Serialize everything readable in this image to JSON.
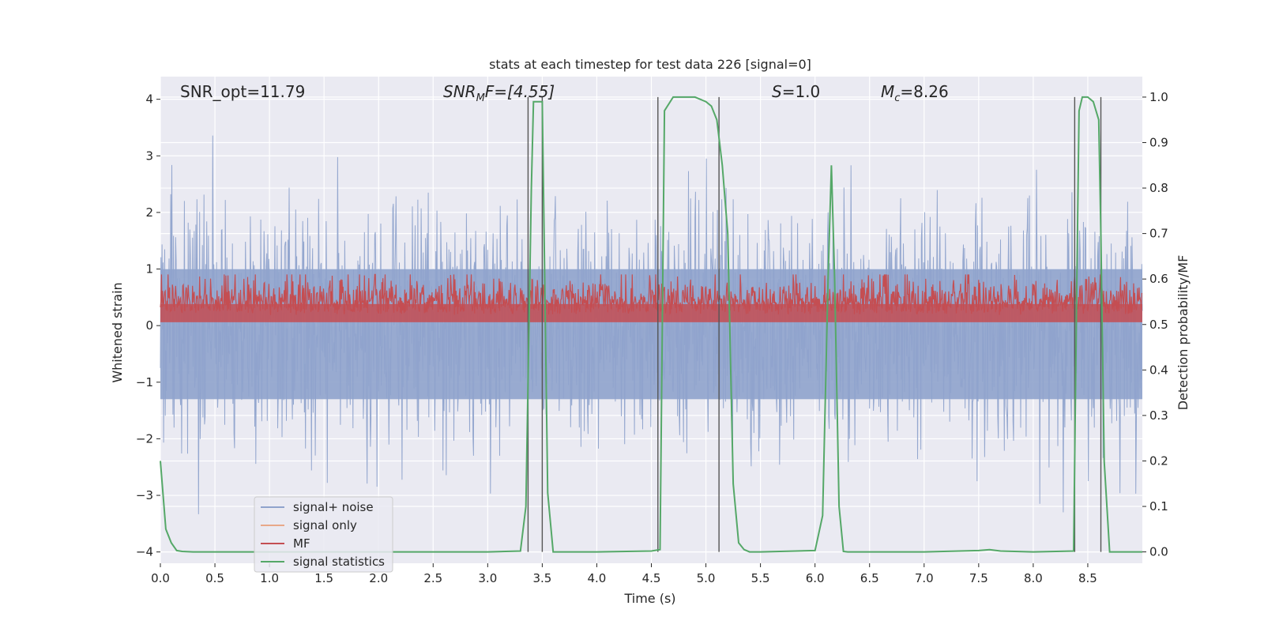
{
  "chart_data": {
    "type": "line",
    "title": "stats at each timestep for test data 226 [signal=0]",
    "xlabel": "Time (s)",
    "ylabel_left": "Whitened strain",
    "ylabel_right": "Detection probability/MF",
    "xlim": [
      0.0,
      9.0
    ],
    "ylim_left": [
      -4.2,
      4.4
    ],
    "ylim_right": [
      -0.025,
      1.045
    ],
    "x_ticks": [
      "0.0",
      "0.5",
      "1.0",
      "1.5",
      "2.0",
      "2.5",
      "3.0",
      "3.5",
      "4.0",
      "4.5",
      "5.0",
      "5.5",
      "6.0",
      "6.5",
      "7.0",
      "7.5",
      "8.0",
      "8.5"
    ],
    "y_ticks_left": [
      "4",
      "3",
      "2",
      "1",
      "0",
      "−1",
      "−2",
      "−3",
      "−4"
    ],
    "y_ticks_right": [
      "1.0",
      "0.9",
      "0.8",
      "0.7",
      "0.6",
      "0.5",
      "0.4",
      "0.3",
      "0.2",
      "0.1",
      "0.0"
    ],
    "annotations": {
      "snr_opt": "SNR_opt=11.79",
      "snr_mf_base": "SNR",
      "snr_mf_sub": "M",
      "snr_mf_rest": "F=[4.55]",
      "s": "S",
      "s_rest": "=1.0",
      "mc": "M",
      "mc_sub": "c",
      "mc_rest": "=8.26"
    },
    "grid": true,
    "legend_position": "lower-left",
    "legend": [
      "signal+ noise",
      "signal only",
      "MF",
      "signal statistics"
    ],
    "colors": {
      "signal_noise": "#8fa3cc",
      "signal_only": "#e8a889",
      "mf": "#c44e52",
      "stats": "#55a868",
      "vlines": "#555555",
      "background": "#eaeaf2"
    },
    "series": [
      {
        "name": "signal statistics",
        "axis": "right",
        "x": [
          0.0,
          0.05,
          0.1,
          0.15,
          0.2,
          0.3,
          0.5,
          1.0,
          2.0,
          3.0,
          3.3,
          3.35,
          3.4,
          3.42,
          3.45,
          3.5,
          3.55,
          3.6,
          3.65,
          4.0,
          4.5,
          4.58,
          4.62,
          4.7,
          4.75,
          4.9,
          5.0,
          5.05,
          5.1,
          5.15,
          5.2,
          5.25,
          5.3,
          5.35,
          5.4,
          5.5,
          6.0,
          6.07,
          6.12,
          6.15,
          6.18,
          6.22,
          6.26,
          6.3,
          6.5,
          7.0,
          7.5,
          7.6,
          7.7,
          8.0,
          8.37,
          8.4,
          8.42,
          8.45,
          8.5,
          8.55,
          8.6,
          8.62,
          8.65,
          8.7,
          8.75,
          8.8,
          9.0
        ],
        "y": [
          0.2,
          0.05,
          0.02,
          0.003,
          0.001,
          0.0,
          0.0,
          0.0,
          0.0,
          0.0,
          0.002,
          0.1,
          0.8,
          0.99,
          0.99,
          0.99,
          0.13,
          0.0,
          0.0,
          0.0,
          0.002,
          0.005,
          0.97,
          1.0,
          1.0,
          1.0,
          0.99,
          0.98,
          0.95,
          0.85,
          0.7,
          0.15,
          0.02,
          0.005,
          0.0,
          0.0,
          0.003,
          0.08,
          0.6,
          0.85,
          0.6,
          0.1,
          0.001,
          0.0,
          0.0,
          0.0,
          0.003,
          0.005,
          0.002,
          0.0,
          0.002,
          0.6,
          0.97,
          1.0,
          1.0,
          0.99,
          0.95,
          0.7,
          0.2,
          0.0,
          0.0,
          0.0,
          0.0
        ]
      }
    ],
    "vertical_lines_x": [
      3.37,
      3.5,
      4.56,
      5.12,
      8.38,
      8.62
    ]
  }
}
